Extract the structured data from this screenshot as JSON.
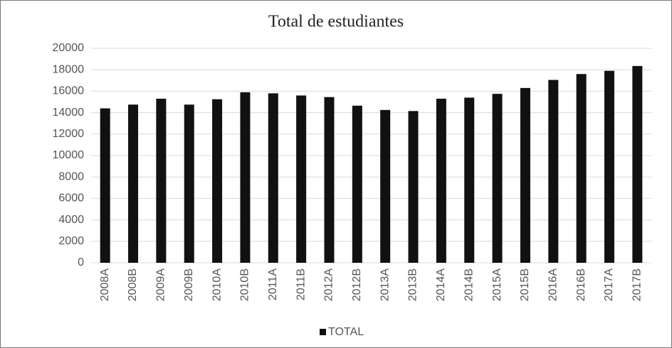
{
  "chart_data": {
    "type": "bar",
    "title": "Total de estudiantes",
    "categories": [
      "2008A",
      "2008B",
      "2009A",
      "2009B",
      "2010A",
      "2010B",
      "2011A",
      "2011B",
      "2012A",
      "2012B",
      "2013A",
      "2013B",
      "2014A",
      "2014B",
      "2015A",
      "2015B",
      "2016A",
      "2016B",
      "2017A",
      "2017B"
    ],
    "series": [
      {
        "name": "TOTAL",
        "color": "#111111",
        "values": [
          14400,
          14750,
          15300,
          14750,
          15250,
          15900,
          15800,
          15600,
          15450,
          14650,
          14250,
          14150,
          15300,
          15400,
          15750,
          16300,
          17050,
          17600,
          17900,
          18350
        ]
      }
    ],
    "ylim": [
      0,
      20000
    ],
    "yticks": [
      0,
      2000,
      4000,
      6000,
      8000,
      10000,
      12000,
      14000,
      16000,
      18000,
      20000
    ],
    "grid": true,
    "legend": "bottom"
  }
}
